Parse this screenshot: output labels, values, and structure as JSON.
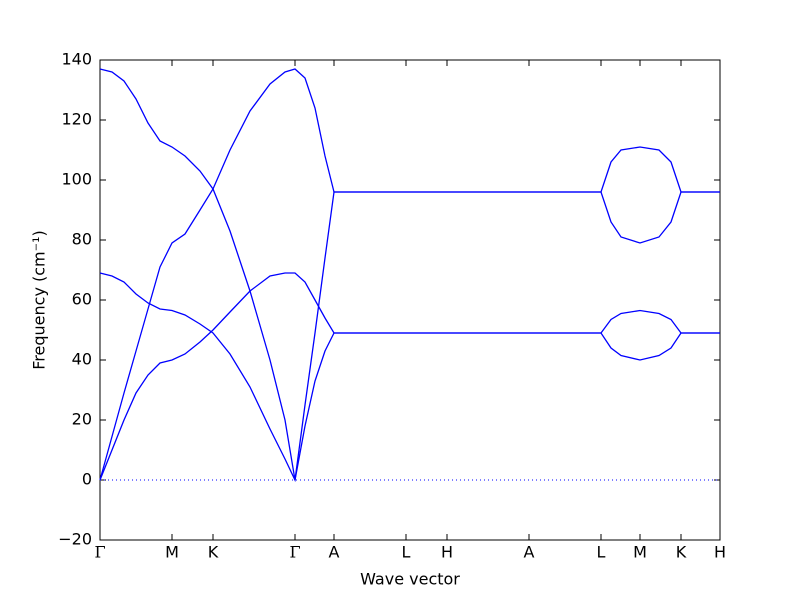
{
  "chart_data": {
    "type": "line",
    "xlabel": "Wave vector",
    "ylabel": "Frequency (cm⁻¹)",
    "xlim": [
      0,
      620
    ],
    "ylim": [
      -20,
      140
    ],
    "yticks": [
      {
        "value": -20,
        "label": "−20"
      },
      0,
      20,
      40,
      60,
      80,
      100,
      120,
      140
    ],
    "xticks": [
      {
        "value": 0,
        "label": "Γ"
      },
      {
        "value": 72,
        "label": "M"
      },
      {
        "value": 113,
        "label": "K"
      },
      {
        "value": 195,
        "label": "Γ"
      },
      {
        "value": 234,
        "label": "A"
      },
      {
        "value": 306,
        "label": "L"
      },
      {
        "value": 347,
        "label": "H"
      },
      {
        "value": 429,
        "label": "A"
      },
      {
        "value": 501,
        "label": "L"
      },
      {
        "value": 540,
        "label": "M"
      },
      {
        "value": 581,
        "label": "K"
      },
      {
        "value": 620,
        "label": "H"
      }
    ],
    "hlines": [
      0
    ],
    "x": [
      0,
      12,
      24,
      36,
      48,
      60,
      72,
      85,
      100,
      113,
      130,
      150,
      170,
      185,
      195,
      205,
      215,
      225,
      234,
      501,
      511,
      521,
      540,
      559,
      571,
      581,
      620
    ],
    "series": [
      {
        "color": "#0000ff",
        "values": [
          0,
          10,
          20,
          29,
          35,
          39,
          40,
          42,
          46,
          50,
          56,
          63,
          68,
          69,
          69,
          66,
          60,
          54,
          49,
          49,
          44,
          41.5,
          40,
          41.5,
          44,
          49,
          49
        ]
      },
      {
        "color": "#0000ff",
        "values": [
          69,
          68,
          66,
          62,
          59,
          57,
          56.5,
          55,
          52,
          49,
          42,
          31,
          17,
          7,
          0,
          18,
          33,
          43,
          49,
          49,
          53.5,
          55.5,
          56.5,
          55.5,
          53.5,
          49,
          49
        ]
      },
      {
        "color": "#0000ff",
        "values": [
          0,
          14.5,
          29,
          43,
          57,
          71,
          79,
          82,
          90,
          97,
          110,
          123,
          132,
          136,
          137,
          134,
          124,
          108,
          96,
          96,
          106,
          110,
          111,
          110,
          106,
          96,
          96
        ]
      },
      {
        "color": "#0000ff",
        "values": [
          137,
          136,
          133,
          127,
          119,
          113,
          111,
          108,
          103,
          97,
          83,
          63,
          40,
          20,
          0,
          25,
          49,
          74,
          96,
          96,
          86,
          81,
          79,
          81,
          86,
          96,
          96
        ]
      }
    ]
  }
}
